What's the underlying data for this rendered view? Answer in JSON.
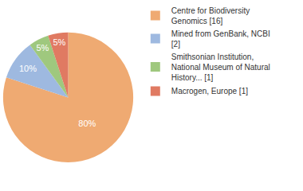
{
  "chart_data": {
    "type": "pie",
    "categories": [
      "Centre for Biodiversity Genomics [16]",
      "Mined from GenBank, NCBI [2]",
      "Smithsonian Institution, National Museum of Natural History... [1]",
      "Macrogen, Europe [1]"
    ],
    "values": [
      80,
      10,
      5,
      5
    ],
    "value_labels": [
      "80%",
      "10%",
      "5%",
      "5%"
    ],
    "colors": [
      "#efaa72",
      "#9eb9e0",
      "#9fc87e",
      "#e07a62"
    ],
    "data_labels": true,
    "legend": "right"
  }
}
